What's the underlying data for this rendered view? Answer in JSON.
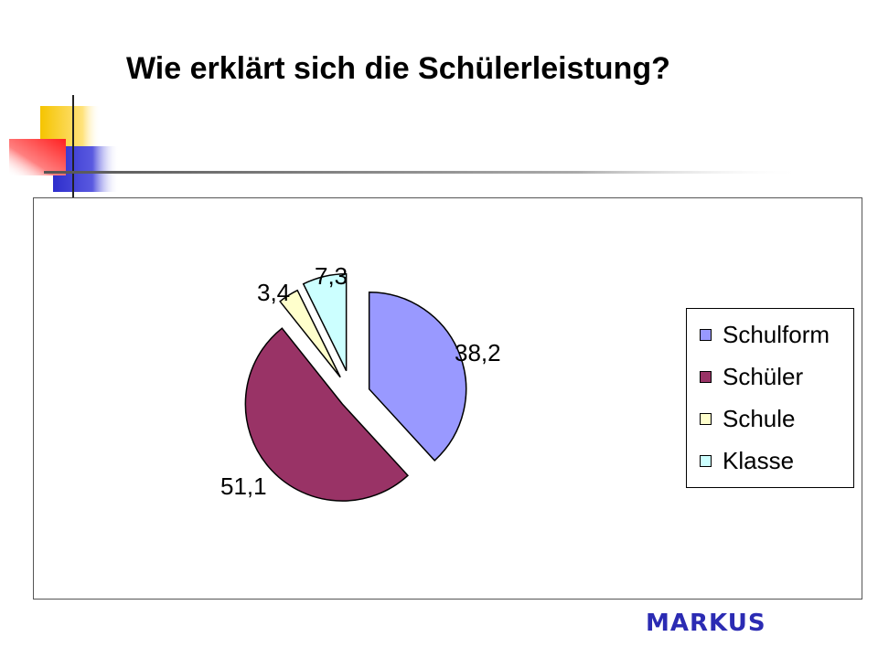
{
  "slide": {
    "title": "Wie erklärt sich die Schülerleistung?",
    "footer": "MARKUS"
  },
  "colors": {
    "title": "#000000",
    "footer": "#2b2bb3",
    "deco_yellow": "#f5c400",
    "deco_blue": "#2d2dcc",
    "deco_red": "#ff4040",
    "deco_line": "#666666"
  },
  "chart_data": {
    "type": "pie",
    "exploded": true,
    "legend_position": "right",
    "categories": [
      "Schulform",
      "Schüler",
      "Schule",
      "Klasse"
    ],
    "values": [
      38.2,
      51.1,
      3.4,
      7.3
    ],
    "data_labels": [
      "38,2",
      "51,1",
      "3,4",
      "7,3"
    ],
    "colors": [
      "#9999ff",
      "#993366",
      "#ffffcc",
      "#ccffff"
    ]
  }
}
